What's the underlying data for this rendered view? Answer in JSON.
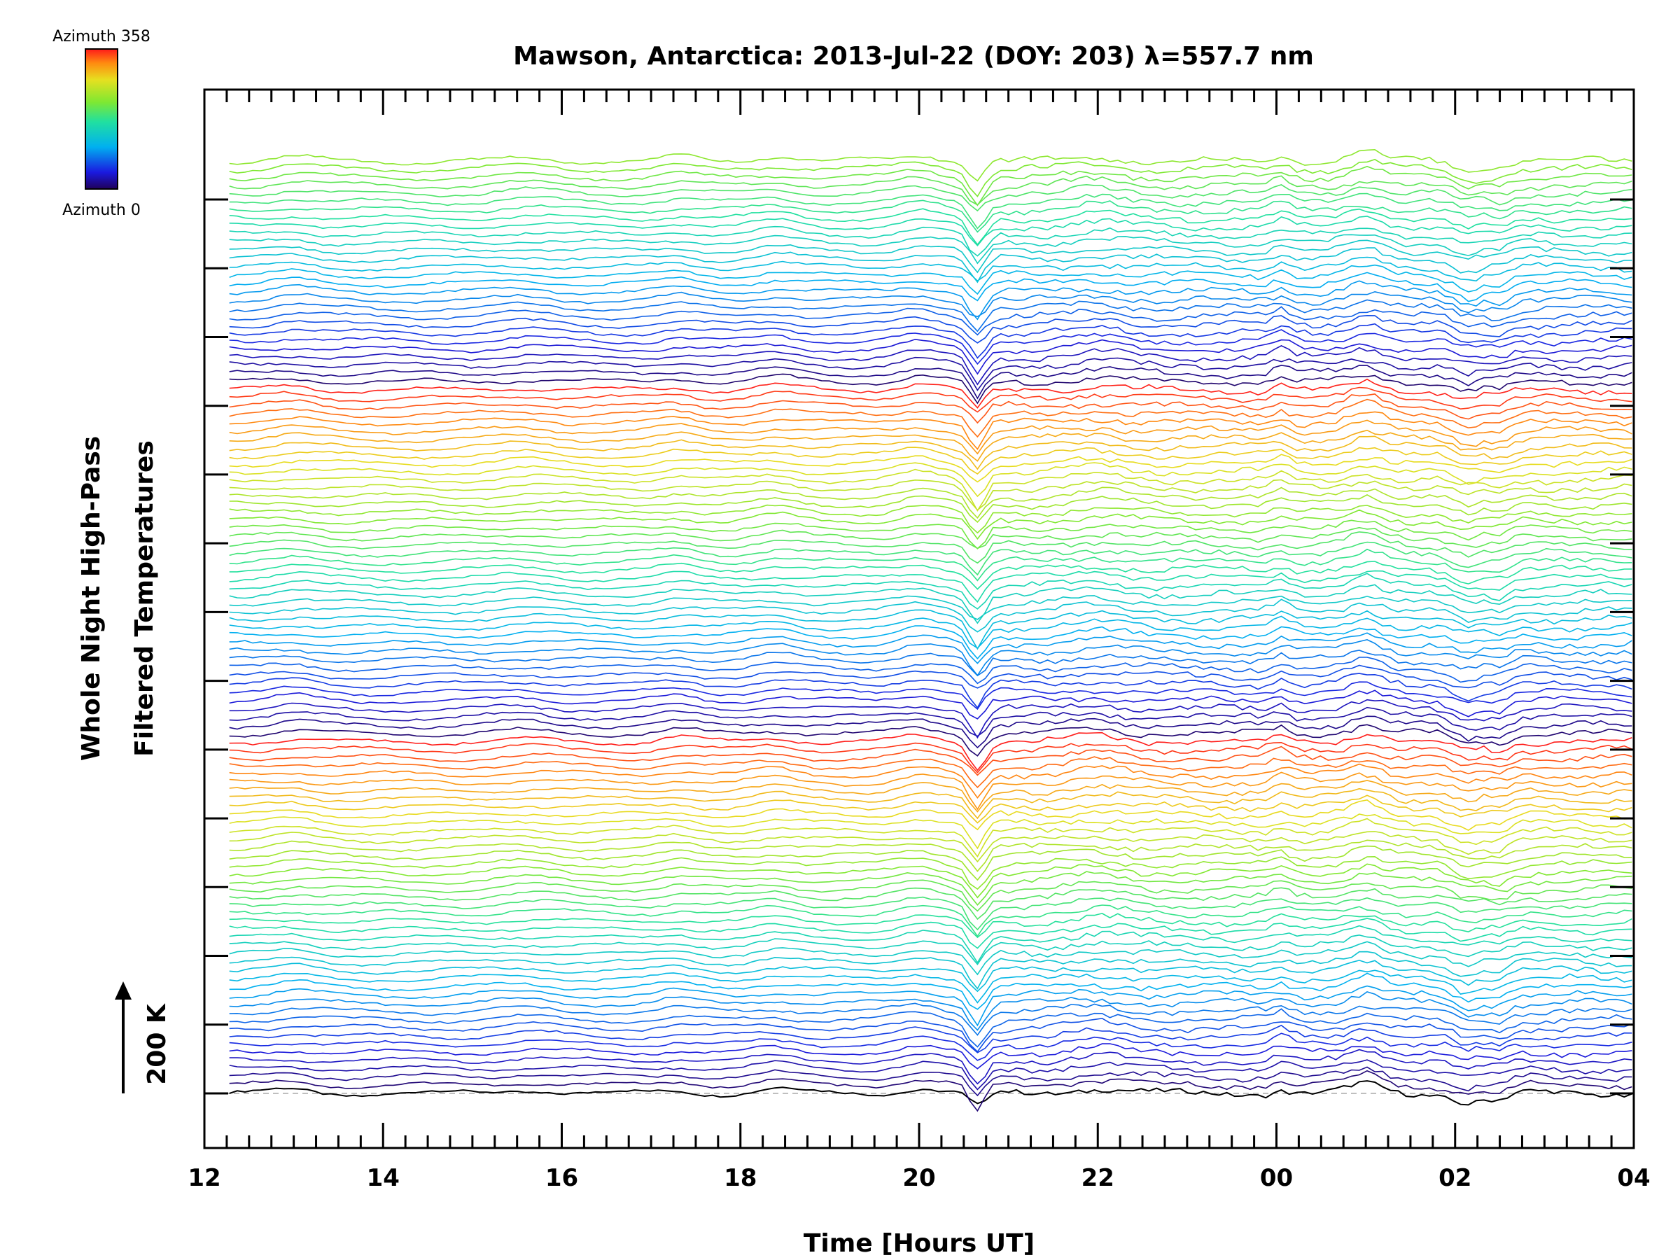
{
  "chart_data": {
    "type": "line",
    "title": "Mawson, Antarctica: 2013-Jul-22 (DOY: 203) λ=557.7 nm",
    "xlabel": "Time [Hours UT]",
    "ylabel_line1": "Whole Night High-Pass",
    "ylabel_line2": "Filtered Temperatures",
    "scale_bar_label": "200 K",
    "x_tick_labels": [
      "12",
      "14",
      "16",
      "18",
      "20",
      "22",
      "00",
      "02",
      "04"
    ],
    "xlim": [
      12,
      28
    ],
    "colorbar": {
      "top_label": "Azimuth  358",
      "bottom_label": "Azimuth  0",
      "colormap": "rainbow",
      "range": [
        0,
        358
      ]
    },
    "num_traces": 115,
    "grid": false,
    "legend": "colorbar top-left"
  }
}
